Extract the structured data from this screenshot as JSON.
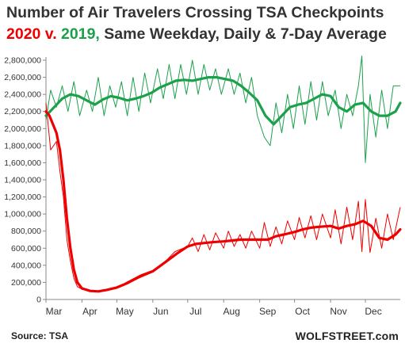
{
  "header": {
    "title": "Number of Air Travelers Crossing TSA Checkpoints",
    "subtitle_2020": "2020",
    "subtitle_v": " v. ",
    "subtitle_2019": "2019,",
    "subtitle_rest": " Same Weekday, Daily & 7-Day Average"
  },
  "footer": {
    "source": "Source: TSA",
    "brand": "WOLFSTREET.com"
  },
  "colors": {
    "series_2019": "#1ca14b",
    "series_2020": "#ee0000",
    "axis": "#888888",
    "text": "#333333"
  },
  "chart_data": {
    "type": "line",
    "title": "Number of Air Travelers Crossing TSA Checkpoints",
    "subtitle": "2020 v. 2019, Same Weekday, Daily & 7-Day Average",
    "xlabel": "",
    "ylabel": "",
    "ylim": [
      0,
      2800000
    ],
    "yticks": [
      0,
      200000,
      400000,
      600000,
      800000,
      1000000,
      1200000,
      1400000,
      1600000,
      1800000,
      2000000,
      2200000,
      2400000,
      2600000,
      2800000
    ],
    "ytick_labels": [
      "0",
      "200,000",
      "400,000",
      "600,000",
      "800,000",
      "1,000,000",
      "1,200,000",
      "1,400,000",
      "1,600,000",
      "1,800,000",
      "2,000,000",
      "2,200,000",
      "2,400,000",
      "2,600,000",
      "2,800,000"
    ],
    "xlim": [
      "2020-03-01",
      "2020-12-31"
    ],
    "xticks": [
      "2020-03-01",
      "2020-04-01",
      "2020-05-01",
      "2020-06-01",
      "2020-07-01",
      "2020-08-01",
      "2020-09-01",
      "2020-10-01",
      "2020-11-01",
      "2020-12-01"
    ],
    "xtick_labels": [
      "Mar",
      "Apr",
      "May",
      "Jun",
      "Jul",
      "Aug",
      "Sep",
      "Oct",
      "Nov",
      "Dec"
    ],
    "grid": false,
    "legend": "none (series identified by colored title text)",
    "series": [
      {
        "name": "2019",
        "color": "#1ca14b",
        "avg_7day": {
          "x": [
            "2020-03-01",
            "2020-03-08",
            "2020-03-15",
            "2020-03-22",
            "2020-03-29",
            "2020-04-05",
            "2020-04-12",
            "2020-04-19",
            "2020-04-26",
            "2020-05-03",
            "2020-05-10",
            "2020-05-17",
            "2020-05-24",
            "2020-05-31",
            "2020-06-07",
            "2020-06-14",
            "2020-06-21",
            "2020-06-28",
            "2020-07-05",
            "2020-07-12",
            "2020-07-19",
            "2020-07-26",
            "2020-08-02",
            "2020-08-09",
            "2020-08-16",
            "2020-08-23",
            "2020-08-30",
            "2020-09-06",
            "2020-09-13",
            "2020-09-20",
            "2020-09-27",
            "2020-10-04",
            "2020-10-11",
            "2020-10-18",
            "2020-10-25",
            "2020-11-01",
            "2020-11-08",
            "2020-11-15",
            "2020-11-22",
            "2020-11-29",
            "2020-12-06",
            "2020-12-13",
            "2020-12-20",
            "2020-12-27",
            "2020-12-31"
          ],
          "y": [
            2150000,
            2250000,
            2350000,
            2400000,
            2380000,
            2330000,
            2280000,
            2340000,
            2380000,
            2360000,
            2330000,
            2350000,
            2380000,
            2420000,
            2480000,
            2520000,
            2560000,
            2570000,
            2560000,
            2580000,
            2600000,
            2600000,
            2580000,
            2560000,
            2500000,
            2420000,
            2330000,
            2150000,
            2050000,
            2150000,
            2250000,
            2280000,
            2300000,
            2350000,
            2400000,
            2380000,
            2250000,
            2200000,
            2280000,
            2300000,
            2200000,
            2150000,
            2150000,
            2200000,
            2300000
          ]
        },
        "daily": {
          "x": [
            "2020-03-01",
            "2020-03-05",
            "2020-03-10",
            "2020-03-15",
            "2020-03-20",
            "2020-03-25",
            "2020-03-30",
            "2020-04-05",
            "2020-04-10",
            "2020-04-15",
            "2020-04-20",
            "2020-04-25",
            "2020-04-30",
            "2020-05-05",
            "2020-05-10",
            "2020-05-15",
            "2020-05-20",
            "2020-05-25",
            "2020-05-30",
            "2020-06-05",
            "2020-06-10",
            "2020-06-15",
            "2020-06-20",
            "2020-06-25",
            "2020-06-30",
            "2020-07-05",
            "2020-07-10",
            "2020-07-15",
            "2020-07-20",
            "2020-07-25",
            "2020-07-30",
            "2020-08-05",
            "2020-08-10",
            "2020-08-15",
            "2020-08-20",
            "2020-08-25",
            "2020-08-30",
            "2020-09-05",
            "2020-09-10",
            "2020-09-15",
            "2020-09-20",
            "2020-09-25",
            "2020-09-30",
            "2020-10-05",
            "2020-10-10",
            "2020-10-15",
            "2020-10-20",
            "2020-10-25",
            "2020-10-30",
            "2020-11-05",
            "2020-11-10",
            "2020-11-15",
            "2020-11-20",
            "2020-11-25",
            "2020-11-28",
            "2020-12-01",
            "2020-12-05",
            "2020-12-10",
            "2020-12-15",
            "2020-12-20",
            "2020-12-25",
            "2020-12-31"
          ],
          "y": [
            2100000,
            2450000,
            2250000,
            2500000,
            2200000,
            2550000,
            2150000,
            2450000,
            2200000,
            2600000,
            2150000,
            2500000,
            2250000,
            2550000,
            2150000,
            2600000,
            2200000,
            2650000,
            2300000,
            2700000,
            2350000,
            2750000,
            2350000,
            2750000,
            2400000,
            2800000,
            2400000,
            2750000,
            2450000,
            2700000,
            2400000,
            2700000,
            2400000,
            2650000,
            2300000,
            2600000,
            2150000,
            1900000,
            1800000,
            2300000,
            1950000,
            2400000,
            2000000,
            2500000,
            2050000,
            2550000,
            2100000,
            2550000,
            2150000,
            2450000,
            2000000,
            2400000,
            2150000,
            2500000,
            2850000,
            1600000,
            2400000,
            1900000,
            2450000,
            2000000,
            2500000,
            2500000
          ]
        }
      },
      {
        "name": "2020",
        "color": "#ee0000",
        "avg_7day": {
          "x": [
            "2020-03-01",
            "2020-03-04",
            "2020-03-07",
            "2020-03-10",
            "2020-03-13",
            "2020-03-16",
            "2020-03-19",
            "2020-03-22",
            "2020-03-25",
            "2020-03-28",
            "2020-04-01",
            "2020-04-08",
            "2020-04-15",
            "2020-04-22",
            "2020-05-01",
            "2020-05-08",
            "2020-05-15",
            "2020-05-22",
            "2020-06-01",
            "2020-06-08",
            "2020-06-15",
            "2020-06-22",
            "2020-07-01",
            "2020-07-08",
            "2020-07-15",
            "2020-07-22",
            "2020-08-01",
            "2020-08-08",
            "2020-08-15",
            "2020-08-22",
            "2020-09-01",
            "2020-09-08",
            "2020-09-15",
            "2020-09-22",
            "2020-10-01",
            "2020-10-08",
            "2020-10-15",
            "2020-10-22",
            "2020-11-01",
            "2020-11-08",
            "2020-11-15",
            "2020-11-22",
            "2020-11-29",
            "2020-12-06",
            "2020-12-13",
            "2020-12-20",
            "2020-12-27",
            "2020-12-31"
          ],
          "y": [
            2200000,
            2150000,
            2050000,
            1950000,
            1750000,
            1400000,
            950000,
            600000,
            350000,
            200000,
            130000,
            100000,
            95000,
            110000,
            140000,
            180000,
            230000,
            280000,
            330000,
            400000,
            470000,
            540000,
            620000,
            650000,
            660000,
            670000,
            680000,
            690000,
            700000,
            700000,
            700000,
            700000,
            740000,
            760000,
            790000,
            820000,
            840000,
            850000,
            860000,
            830000,
            860000,
            880000,
            920000,
            860000,
            720000,
            700000,
            760000,
            820000
          ]
        },
        "daily": {
          "x": [
            "2020-03-01",
            "2020-03-05",
            "2020-03-10",
            "2020-03-13",
            "2020-03-16",
            "2020-03-19",
            "2020-03-22",
            "2020-03-25",
            "2020-03-28",
            "2020-04-01",
            "2020-04-10",
            "2020-04-20",
            "2020-05-01",
            "2020-05-10",
            "2020-05-20",
            "2020-06-01",
            "2020-06-10",
            "2020-06-20",
            "2020-07-01",
            "2020-07-05",
            "2020-07-10",
            "2020-07-15",
            "2020-07-20",
            "2020-07-25",
            "2020-08-01",
            "2020-08-05",
            "2020-08-10",
            "2020-08-15",
            "2020-08-20",
            "2020-08-25",
            "2020-09-01",
            "2020-09-05",
            "2020-09-10",
            "2020-09-15",
            "2020-09-20",
            "2020-09-25",
            "2020-10-01",
            "2020-10-05",
            "2020-10-10",
            "2020-10-15",
            "2020-10-20",
            "2020-10-25",
            "2020-11-01",
            "2020-11-05",
            "2020-11-10",
            "2020-11-15",
            "2020-11-20",
            "2020-11-25",
            "2020-11-28",
            "2020-12-01",
            "2020-12-05",
            "2020-12-10",
            "2020-12-15",
            "2020-12-20",
            "2020-12-25",
            "2020-12-31"
          ],
          "y": [
            2300000,
            1750000,
            1850000,
            1500000,
            1200000,
            700000,
            450000,
            250000,
            150000,
            120000,
            95000,
            100000,
            140000,
            180000,
            250000,
            320000,
            420000,
            560000,
            620000,
            720000,
            560000,
            760000,
            580000,
            780000,
            600000,
            800000,
            620000,
            760000,
            600000,
            800000,
            600000,
            900000,
            620000,
            850000,
            650000,
            920000,
            700000,
            960000,
            720000,
            980000,
            700000,
            1000000,
            720000,
            1050000,
            650000,
            1080000,
            700000,
            1150000,
            560000,
            1170000,
            550000,
            950000,
            600000,
            1000000,
            700000,
            1080000
          ]
        }
      }
    ]
  }
}
